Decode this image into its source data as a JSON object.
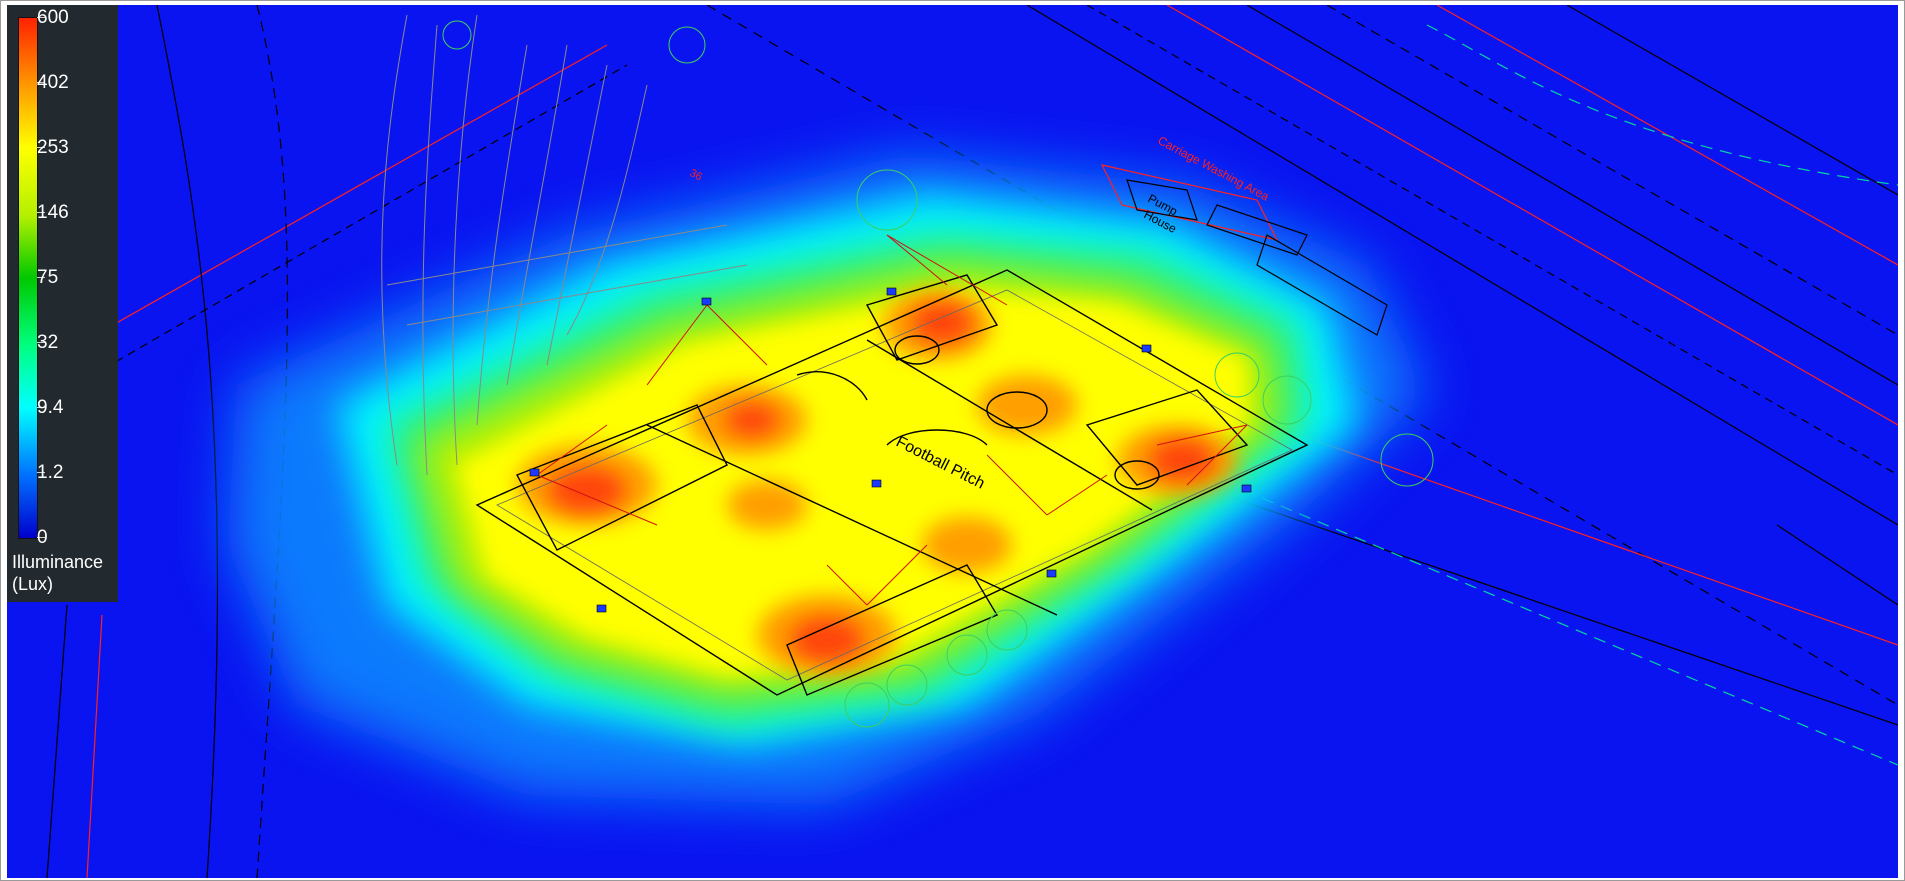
{
  "colors": {
    "background": "#0a14f0",
    "scale": [
      "#0000cc",
      "#0070ff",
      "#00ffff",
      "#00ff80",
      "#00c800",
      "#b4f000",
      "#ffff00",
      "#ff9900",
      "#ff2200"
    ],
    "cad_lines": "#000000",
    "boundary_lines": "#ff2020",
    "annotations": "#8a8a8a"
  },
  "legend": {
    "ticks": [
      "600",
      "402",
      "253",
      "146",
      "75",
      "32",
      "9.4",
      "1.2",
      "0"
    ],
    "title_line1": "Illuminance",
    "title_line2": "(Lux)"
  },
  "drawing_labels": {
    "pitch": "Football Pitch",
    "pump_house_1": "Pump",
    "pump_house_2": "House",
    "washing_area": "Carriage Washing Area",
    "misc": "36"
  }
}
